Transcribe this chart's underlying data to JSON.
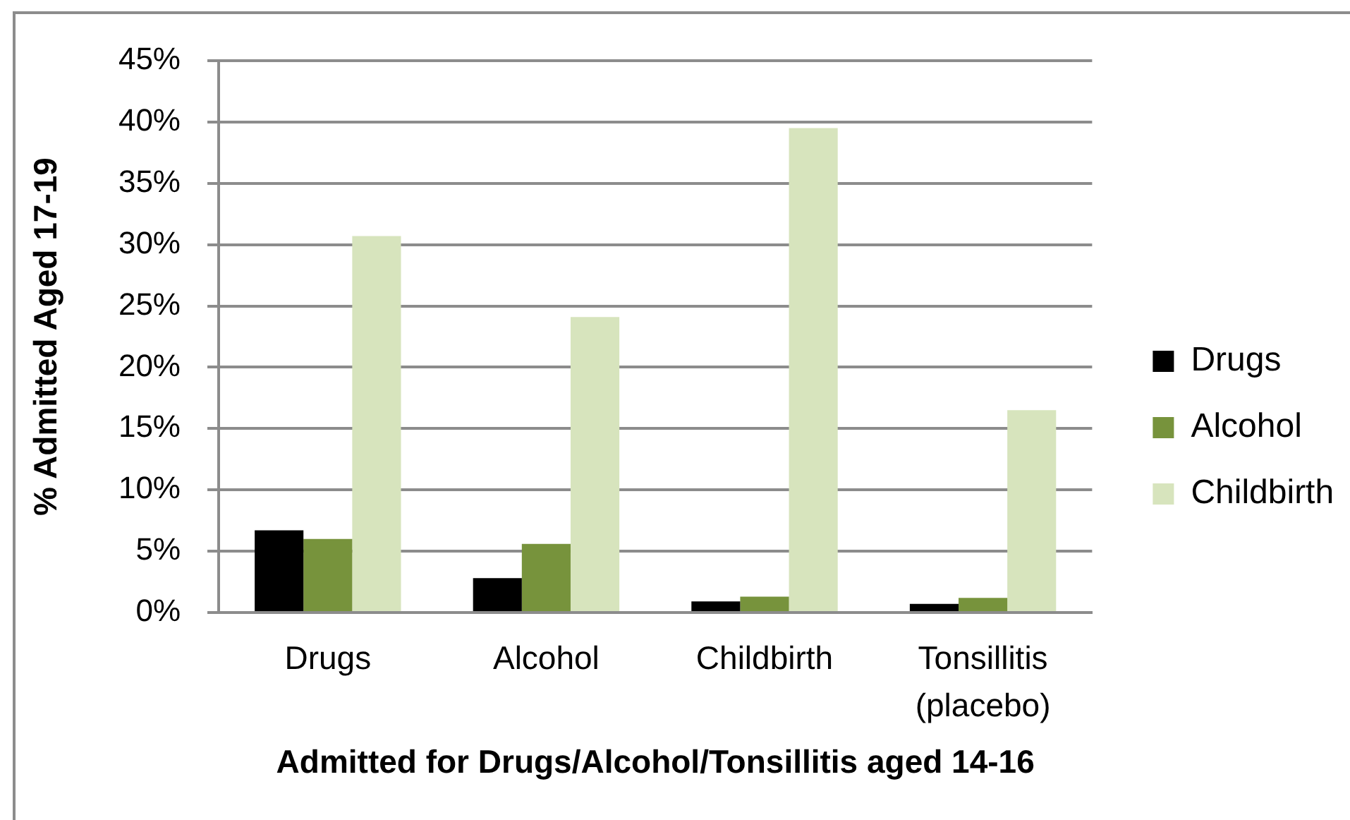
{
  "chart_data": {
    "type": "bar",
    "xlabel": "Admitted for Drugs/Alcohol/Tonsillitis aged 14-16",
    "ylabel": "% Admitted Aged 17-19",
    "categories": [
      "Drugs",
      "Alcohol",
      "Childbirth",
      "Tonsillitis\n(placebo)"
    ],
    "series": [
      {
        "name": "Drugs",
        "color": "#000000",
        "values": [
          6.7,
          2.8,
          0.9,
          0.7
        ]
      },
      {
        "name": "Alcohol",
        "color": "#77933c",
        "values": [
          6.0,
          5.6,
          1.3,
          1.2
        ]
      },
      {
        "name": "Childbirth",
        "color": "#d7e4bd",
        "values": [
          30.7,
          24.1,
          39.5,
          16.5
        ]
      }
    ],
    "ylim": [
      0,
      45
    ],
    "yticks": [
      {
        "value": 0,
        "label": "0%"
      },
      {
        "value": 5,
        "label": "5%"
      },
      {
        "value": 10,
        "label": "10%"
      },
      {
        "value": 15,
        "label": "15%"
      },
      {
        "value": 20,
        "label": "20%"
      },
      {
        "value": 25,
        "label": "25%"
      },
      {
        "value": 30,
        "label": "30%"
      },
      {
        "value": 35,
        "label": "35%"
      },
      {
        "value": 40,
        "label": "40%"
      },
      {
        "value": 45,
        "label": "45%"
      }
    ],
    "grid": "y",
    "legend": "right"
  }
}
